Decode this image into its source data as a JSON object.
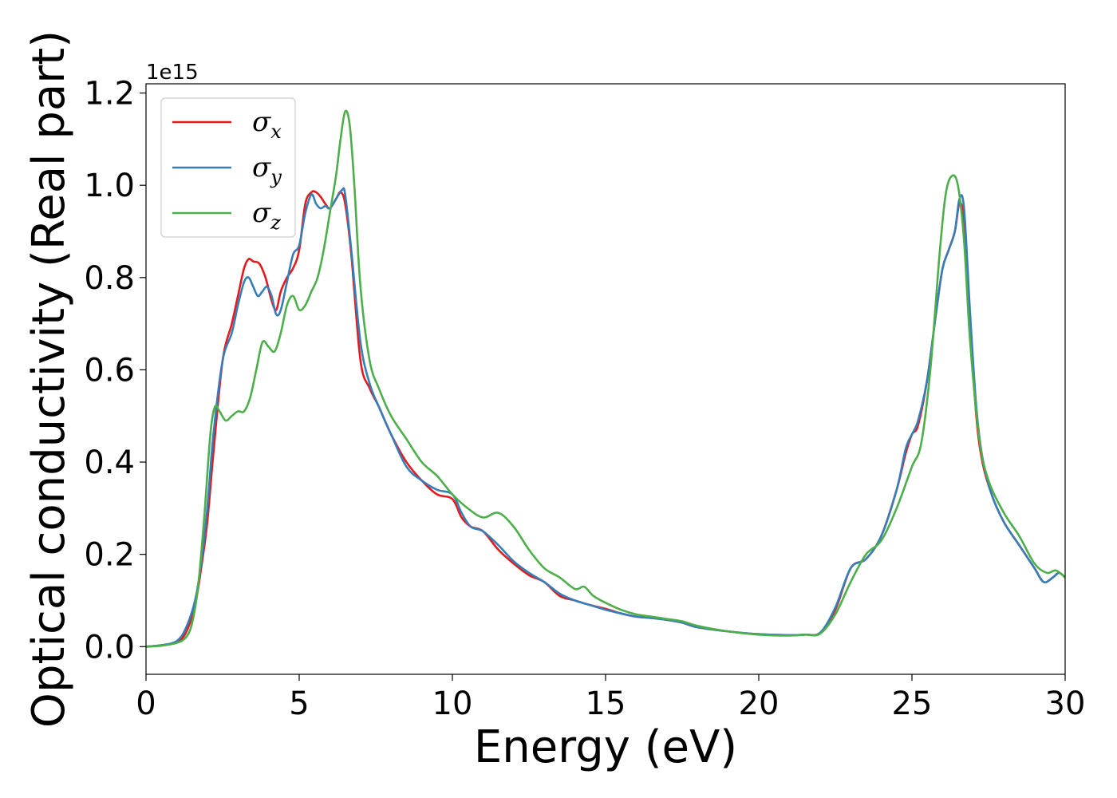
{
  "chart_data": {
    "type": "line",
    "title": "",
    "xlabel": "Energy (eV)",
    "ylabel": "Optical conductivity (Real part)",
    "y_offset_label": "1e15",
    "xlim": [
      0,
      30
    ],
    "ylim": [
      -0.06,
      1.22
    ],
    "xticks": [
      0,
      5,
      10,
      15,
      20,
      25,
      30
    ],
    "xtick_labels": [
      "0",
      "5",
      "10",
      "15",
      "20",
      "25",
      "30"
    ],
    "yticks": [
      0.0,
      0.2,
      0.4,
      0.6,
      0.8,
      1.0,
      1.2
    ],
    "ytick_labels": [
      "0.0",
      "0.2",
      "0.4",
      "0.6",
      "0.8",
      "1.0",
      "1.2"
    ],
    "grid": false,
    "legend_position": "top-left",
    "series": [
      {
        "name": "σx",
        "symbol": "σ",
        "subscript": "x",
        "color": "#e41a1c",
        "x": [
          0,
          0.5,
          1,
          1.3,
          1.6,
          1.8,
          2,
          2.2,
          2.5,
          2.8,
          3,
          3.2,
          3.35,
          3.5,
          3.7,
          3.9,
          4.1,
          4.25,
          4.4,
          4.6,
          4.8,
          5,
          5.2,
          5.4,
          5.55,
          5.7,
          5.85,
          6,
          6.2,
          6.35,
          6.5,
          6.7,
          7,
          7.3,
          7.6,
          8,
          8.5,
          9,
          9.5,
          10,
          10.3,
          10.6,
          11,
          11.5,
          12,
          12.5,
          13,
          13.5,
          14,
          14.5,
          15,
          15.5,
          16,
          16.5,
          17,
          17.5,
          18,
          19,
          20,
          21,
          21.5,
          22,
          22.5,
          23,
          23.5,
          24,
          24.5,
          24.8,
          25,
          25.2,
          25.5,
          25.8,
          26,
          26.2,
          26.4,
          26.55,
          26.7,
          26.9,
          27.1,
          27.3,
          27.6,
          28,
          28.5,
          29,
          29.3,
          29.6,
          29.8,
          30
        ],
        "y": [
          0,
          0.003,
          0.01,
          0.03,
          0.09,
          0.17,
          0.27,
          0.42,
          0.62,
          0.7,
          0.76,
          0.82,
          0.84,
          0.835,
          0.83,
          0.8,
          0.75,
          0.73,
          0.77,
          0.8,
          0.82,
          0.86,
          0.96,
          0.985,
          0.985,
          0.975,
          0.96,
          0.95,
          0.97,
          0.985,
          0.96,
          0.85,
          0.62,
          0.56,
          0.52,
          0.46,
          0.4,
          0.36,
          0.33,
          0.32,
          0.28,
          0.26,
          0.25,
          0.21,
          0.18,
          0.155,
          0.14,
          0.11,
          0.1,
          0.09,
          0.082,
          0.072,
          0.065,
          0.062,
          0.058,
          0.052,
          0.042,
          0.033,
          0.027,
          0.025,
          0.026,
          0.03,
          0.08,
          0.17,
          0.19,
          0.24,
          0.34,
          0.42,
          0.46,
          0.48,
          0.58,
          0.73,
          0.82,
          0.86,
          0.9,
          0.96,
          0.92,
          0.7,
          0.5,
          0.4,
          0.33,
          0.27,
          0.22,
          0.17,
          0.14,
          0.15,
          0.16,
          0.15
        ]
      },
      {
        "name": "σy",
        "symbol": "σ",
        "subscript": "y",
        "color": "#377eb8",
        "x": [
          0,
          0.5,
          1,
          1.3,
          1.6,
          1.8,
          2,
          2.2,
          2.5,
          2.8,
          3,
          3.2,
          3.35,
          3.5,
          3.65,
          3.8,
          3.95,
          4.1,
          4.25,
          4.4,
          4.6,
          4.8,
          5,
          5.2,
          5.4,
          5.55,
          5.7,
          5.85,
          6,
          6.2,
          6.4,
          6.5,
          6.7,
          7,
          7.3,
          7.6,
          8,
          8.5,
          9,
          9.5,
          10,
          10.3,
          10.6,
          11,
          11.5,
          12,
          12.5,
          13,
          13.5,
          14,
          14.5,
          15,
          15.5,
          16,
          16.5,
          17,
          17.5,
          18,
          19,
          20,
          21,
          21.5,
          22,
          22.5,
          23,
          23.5,
          24,
          24.5,
          24.8,
          25,
          25.2,
          25.5,
          25.8,
          26,
          26.2,
          26.4,
          26.55,
          26.7,
          26.9,
          27.1,
          27.3,
          27.6,
          28,
          28.5,
          29,
          29.3,
          29.6,
          29.8,
          30
        ],
        "y": [
          0,
          0.003,
          0.012,
          0.04,
          0.1,
          0.18,
          0.3,
          0.46,
          0.62,
          0.68,
          0.74,
          0.79,
          0.8,
          0.78,
          0.76,
          0.77,
          0.78,
          0.76,
          0.72,
          0.73,
          0.79,
          0.85,
          0.87,
          0.94,
          0.98,
          0.96,
          0.95,
          0.955,
          0.95,
          0.97,
          0.99,
          0.98,
          0.86,
          0.66,
          0.57,
          0.52,
          0.46,
          0.39,
          0.36,
          0.34,
          0.33,
          0.29,
          0.26,
          0.25,
          0.22,
          0.185,
          0.16,
          0.14,
          0.115,
          0.1,
          0.09,
          0.08,
          0.072,
          0.065,
          0.062,
          0.058,
          0.052,
          0.042,
          0.033,
          0.027,
          0.025,
          0.026,
          0.03,
          0.085,
          0.17,
          0.19,
          0.24,
          0.34,
          0.43,
          0.46,
          0.49,
          0.58,
          0.73,
          0.82,
          0.86,
          0.9,
          0.97,
          0.95,
          0.72,
          0.52,
          0.41,
          0.33,
          0.27,
          0.22,
          0.17,
          0.14,
          0.15,
          0.16,
          0.15
        ]
      },
      {
        "name": "σz",
        "symbol": "σ",
        "subscript": "z",
        "color": "#4daf4a",
        "x": [
          0,
          0.5,
          1,
          1.3,
          1.5,
          1.7,
          1.9,
          2.1,
          2.25,
          2.4,
          2.6,
          2.8,
          3,
          3.2,
          3.4,
          3.6,
          3.8,
          4,
          4.2,
          4.4,
          4.6,
          4.8,
          5,
          5.2,
          5.4,
          5.6,
          5.8,
          6,
          6.2,
          6.35,
          6.5,
          6.65,
          6.8,
          7,
          7.3,
          7.6,
          8,
          8.5,
          9,
          9.5,
          10,
          10.5,
          11,
          11.5,
          12,
          12.5,
          13,
          13.5,
          14,
          14.3,
          14.6,
          15,
          15.5,
          16,
          16.5,
          17,
          17.5,
          18,
          19,
          20,
          21,
          21.5,
          22,
          22.5,
          23,
          23.5,
          24,
          24.5,
          25,
          25.3,
          25.6,
          25.9,
          26.1,
          26.3,
          26.5,
          26.7,
          26.9,
          27.2,
          27.5,
          28,
          28.5,
          29,
          29.4,
          29.7,
          30
        ],
        "y": [
          0,
          0.002,
          0.008,
          0.02,
          0.05,
          0.13,
          0.28,
          0.46,
          0.52,
          0.51,
          0.49,
          0.5,
          0.51,
          0.51,
          0.54,
          0.6,
          0.66,
          0.65,
          0.64,
          0.68,
          0.74,
          0.76,
          0.73,
          0.74,
          0.77,
          0.8,
          0.86,
          0.94,
          1.02,
          1.1,
          1.16,
          1.13,
          1.0,
          0.78,
          0.62,
          0.56,
          0.5,
          0.45,
          0.4,
          0.37,
          0.33,
          0.3,
          0.28,
          0.29,
          0.26,
          0.21,
          0.17,
          0.15,
          0.125,
          0.13,
          0.11,
          0.095,
          0.08,
          0.07,
          0.065,
          0.06,
          0.055,
          0.045,
          0.033,
          0.026,
          0.024,
          0.026,
          0.028,
          0.07,
          0.14,
          0.2,
          0.23,
          0.3,
          0.39,
          0.44,
          0.6,
          0.85,
          0.98,
          1.02,
          1.0,
          0.88,
          0.66,
          0.45,
          0.36,
          0.29,
          0.24,
          0.18,
          0.16,
          0.165,
          0.15
        ]
      }
    ]
  }
}
